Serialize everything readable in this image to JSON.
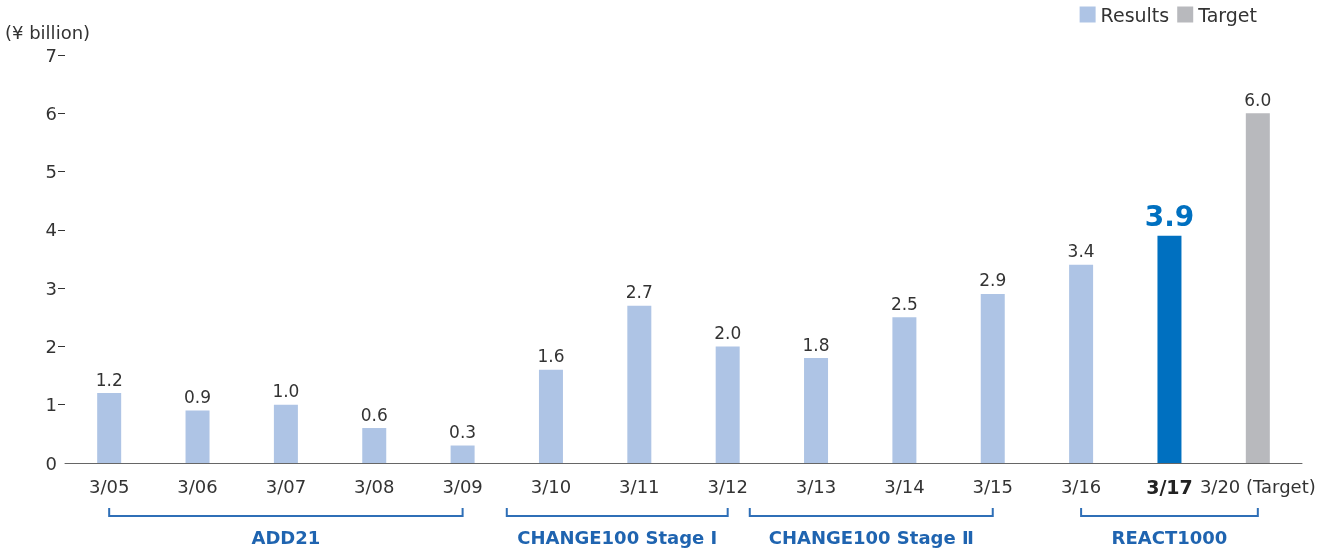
{
  "chart_data": {
    "type": "bar",
    "ylabel": "(¥ billion)",
    "categories": [
      "3/05",
      "3/06",
      "3/07",
      "3/08",
      "3/09",
      "3/10",
      "3/11",
      "3/12",
      "3/13",
      "3/14",
      "3/15",
      "3/16",
      "3/17",
      "3/20 (Target)"
    ],
    "series": [
      {
        "name": "Results",
        "color": "#aec4e5",
        "colors": [
          "#aec4e5",
          "#aec4e5",
          "#aec4e5",
          "#aec4e5",
          "#aec4e5",
          "#aec4e5",
          "#aec4e5",
          "#aec4e5",
          "#aec4e5",
          "#aec4e5",
          "#aec4e5",
          "#aec4e5",
          "#0070c0",
          null
        ],
        "values": [
          1.2,
          0.9,
          1.0,
          0.6,
          0.3,
          1.6,
          2.7,
          2.0,
          1.8,
          2.5,
          2.9,
          3.4,
          3.9,
          null
        ],
        "value_labels": [
          "1.2",
          "0.9",
          "1.0",
          "0.6",
          "0.3",
          "1.6",
          "2.7",
          "2.0",
          "1.8",
          "2.5",
          "2.9",
          "3.4",
          "3.9",
          null
        ]
      },
      {
        "name": "Target",
        "color": "#b8b9bd",
        "values": [
          null,
          null,
          null,
          null,
          null,
          null,
          null,
          null,
          null,
          null,
          null,
          null,
          null,
          6.0
        ],
        "value_labels": [
          null,
          null,
          null,
          null,
          null,
          null,
          null,
          null,
          null,
          null,
          null,
          null,
          null,
          "6.0"
        ]
      }
    ],
    "ylim": [
      0,
      7
    ],
    "yticks": [
      0,
      1,
      2,
      3,
      4,
      5,
      6,
      7
    ],
    "grid": false,
    "legend": "top right",
    "annotations": [
      "ADD21",
      "CHANGE100 Stage Ⅰ",
      "CHANGE100 Stage Ⅱ",
      "REACT1000"
    ]
  }
}
